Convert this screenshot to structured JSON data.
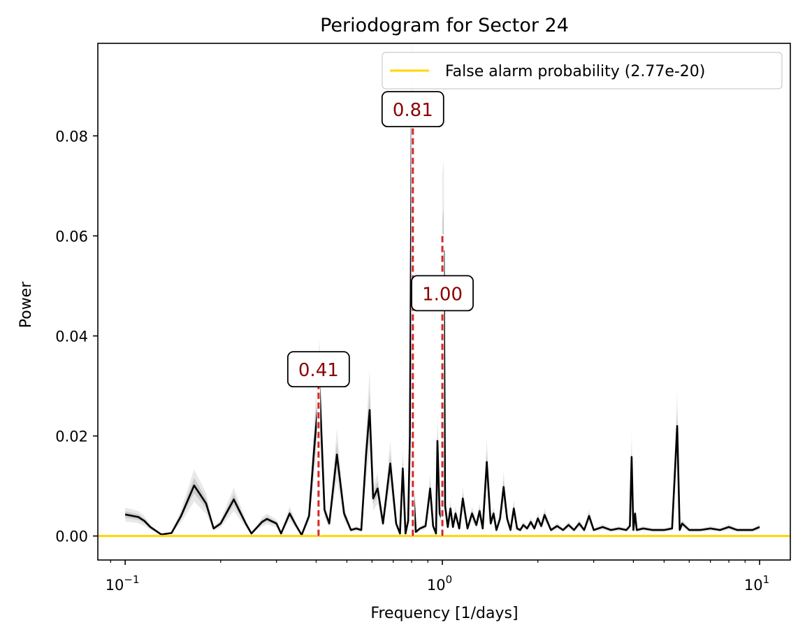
{
  "chart_data": {
    "type": "line",
    "title": "Periodogram for Sector 24",
    "xlabel": "Frequency [1/days]",
    "ylabel": "Power",
    "xscale": "log",
    "xlim": [
      0.082,
      12.5
    ],
    "ylim": [
      -0.0048,
      0.0985
    ],
    "xticks": [
      {
        "value": 0.1,
        "base": "10",
        "exp": "−1"
      },
      {
        "value": 1,
        "base": "10",
        "exp": "0"
      },
      {
        "value": 10,
        "base": "10",
        "exp": "1"
      }
    ],
    "yticks": [
      {
        "value": 0.0,
        "label": "0.00"
      },
      {
        "value": 0.02,
        "label": "0.02"
      },
      {
        "value": 0.04,
        "label": "0.04"
      },
      {
        "value": 0.06,
        "label": "0.06"
      },
      {
        "value": 0.08,
        "label": "0.08"
      }
    ],
    "grid": false,
    "legend": {
      "position": "top-right",
      "entries": [
        {
          "label": "False alarm probability (2.77e-20)",
          "color": "#FFD700"
        }
      ]
    },
    "threshold": {
      "value": 0.0,
      "color": "#FFD700"
    },
    "series": [
      {
        "color": "#000000",
        "x": [
          0.1,
          0.11,
          0.115,
          0.12,
          0.13,
          0.14,
          0.15,
          0.165,
          0.18,
          0.19,
          0.2,
          0.22,
          0.24,
          0.25,
          0.27,
          0.28,
          0.3,
          0.31,
          0.33,
          0.345,
          0.36,
          0.38,
          0.395,
          0.41,
          0.425,
          0.44,
          0.465,
          0.49,
          0.515,
          0.535,
          0.555,
          0.575,
          0.59,
          0.605,
          0.625,
          0.65,
          0.685,
          0.715,
          0.735,
          0.75,
          0.765,
          0.78,
          0.79,
          0.8,
          0.81,
          0.825,
          0.85,
          0.885,
          0.915,
          0.935,
          0.955,
          0.965,
          0.98,
          0.995,
          1.0,
          1.01,
          1.02,
          1.04,
          1.06,
          1.08,
          1.1,
          1.13,
          1.16,
          1.2,
          1.24,
          1.28,
          1.31,
          1.34,
          1.38,
          1.42,
          1.45,
          1.48,
          1.52,
          1.56,
          1.6,
          1.64,
          1.68,
          1.72,
          1.76,
          1.8,
          1.85,
          1.9,
          1.95,
          2.0,
          2.05,
          2.1,
          2.2,
          2.3,
          2.4,
          2.5,
          2.6,
          2.7,
          2.8,
          2.9,
          3.0,
          3.2,
          3.4,
          3.6,
          3.8,
          3.9,
          3.95,
          4.0,
          4.05,
          4.1,
          4.3,
          4.6,
          5.0,
          5.3,
          5.5,
          5.6,
          5.7,
          6.0,
          6.5,
          7.0,
          7.5,
          8.0,
          8.5,
          9.0,
          9.5,
          10.0
        ],
        "y": [
          0.0043,
          0.0038,
          0.003,
          0.0018,
          0.0003,
          0.0006,
          0.004,
          0.0101,
          0.0065,
          0.0015,
          0.0025,
          0.0073,
          0.0025,
          0.0005,
          0.0028,
          0.0034,
          0.0025,
          0.0005,
          0.0045,
          0.0022,
          0.0002,
          0.004,
          0.018,
          0.0298,
          0.0052,
          0.0025,
          0.0163,
          0.0045,
          0.0012,
          0.0015,
          0.0012,
          0.0165,
          0.0252,
          0.0075,
          0.0095,
          0.0025,
          0.0145,
          0.0025,
          0.0005,
          0.0135,
          0.0005,
          0.003,
          0.02,
          0.0815,
          0.0093,
          0.0008,
          0.0015,
          0.002,
          0.0095,
          0.002,
          0.0005,
          0.019,
          0.0045,
          0.0035,
          0.055,
          0.057,
          0.006,
          0.0018,
          0.0055,
          0.0018,
          0.0045,
          0.0015,
          0.0075,
          0.0015,
          0.0045,
          0.0022,
          0.005,
          0.0015,
          0.0148,
          0.0025,
          0.0045,
          0.0012,
          0.0035,
          0.0098,
          0.0035,
          0.0012,
          0.0055,
          0.0015,
          0.0012,
          0.0022,
          0.0015,
          0.0028,
          0.0015,
          0.0035,
          0.002,
          0.0042,
          0.0012,
          0.002,
          0.0012,
          0.0022,
          0.0012,
          0.0025,
          0.0012,
          0.004,
          0.0012,
          0.0018,
          0.0012,
          0.0015,
          0.0012,
          0.002,
          0.0158,
          0.0012,
          0.0045,
          0.0012,
          0.0015,
          0.0012,
          0.0012,
          0.0015,
          0.022,
          0.0012,
          0.0025,
          0.0012,
          0.0012,
          0.0015,
          0.0012,
          0.0018,
          0.0012,
          0.0012,
          0.0012,
          0.0018
        ]
      }
    ],
    "peaks": [
      {
        "x": 0.407,
        "y": 0.0305,
        "label": "0.41",
        "label_y": 0.0332
      },
      {
        "x": 0.807,
        "y": 0.086,
        "label": "0.81",
        "label_y": 0.0852
      },
      {
        "x": 1.0,
        "y": 0.0603,
        "label": "1.00",
        "label_y": 0.0484
      }
    ],
    "peak_line_color": "#D62728",
    "peak_label_color": "#8B0000"
  }
}
